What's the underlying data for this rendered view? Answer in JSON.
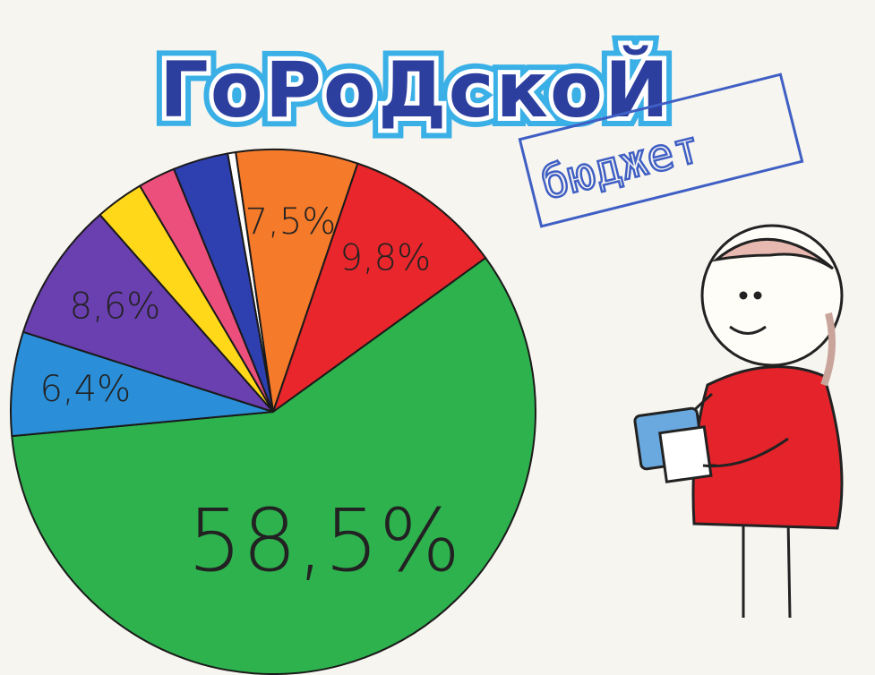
{
  "chart_data": {
    "type": "pie",
    "title": "ГоРоДскоЙ",
    "subtitle": "бюджет",
    "values": [
      0.5,
      7.5,
      9.8,
      58.5,
      6.4,
      8.6,
      3.0,
      2.3,
      3.4
    ],
    "value_labels": [
      null,
      "7,5%",
      "9,8%",
      "58,5%",
      "6,4%",
      "8,6%",
      null,
      null,
      null
    ],
    "colors": [
      "#ffffff",
      "#f57a2a",
      "#e8262b",
      "#2eb24e",
      "#2a8fd8",
      "#6a3fb0",
      "#ffd81a",
      "#ec4f7c",
      "#2e3fb0"
    ]
  }
}
